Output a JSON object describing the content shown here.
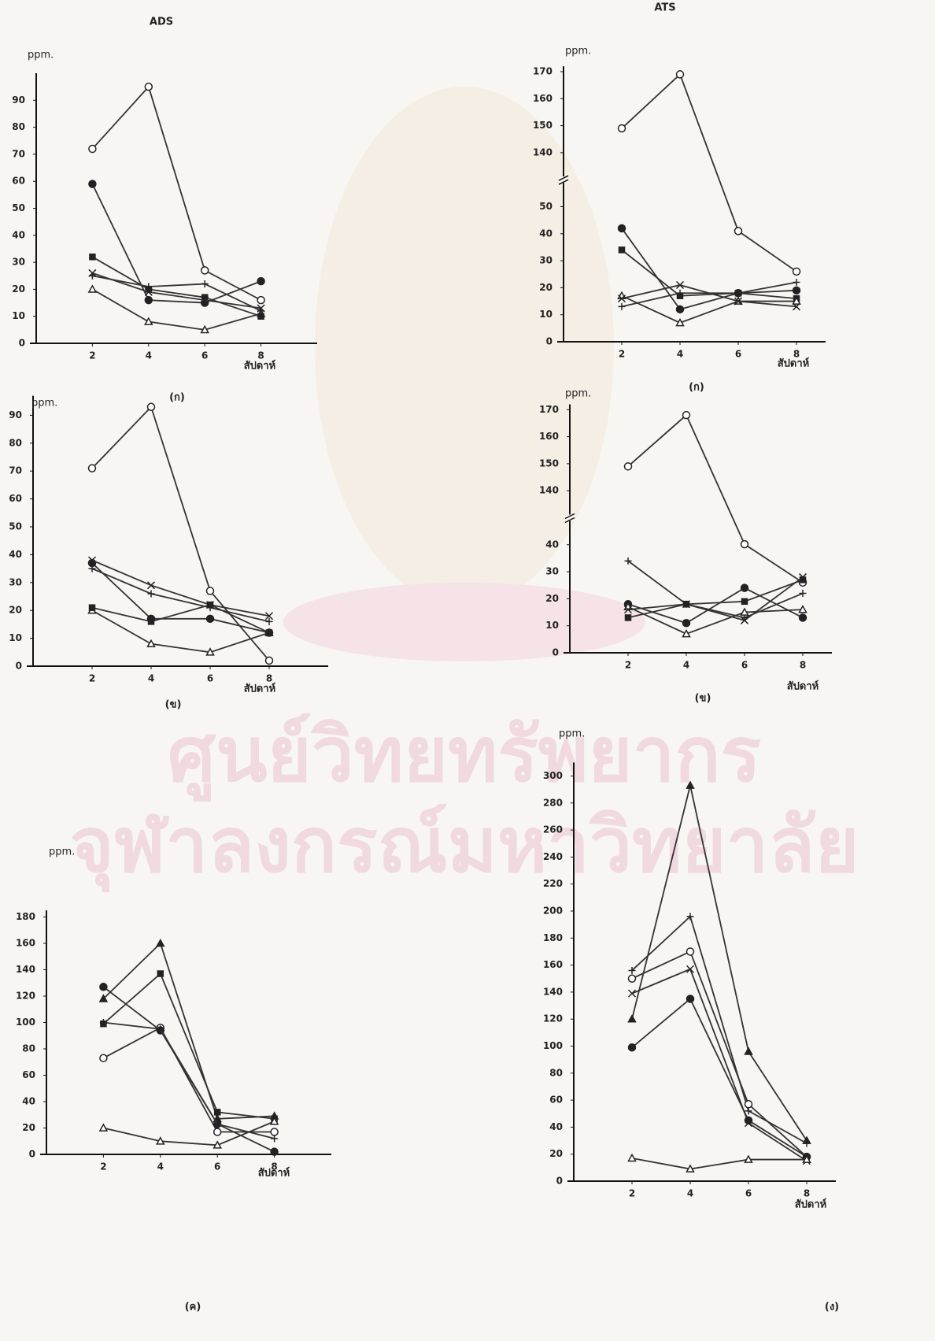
{
  "chart_data": [
    {
      "type": "line",
      "title": "ADS",
      "y_label": "ppm.",
      "x_label": "สัปดาห์",
      "caption": "(ก)",
      "x": [
        2,
        4,
        6,
        8
      ],
      "xlim": [
        0,
        10
      ],
      "xticks": [
        2,
        4,
        6,
        8
      ],
      "ylim": [
        0,
        100
      ],
      "yticks": [
        0,
        10,
        20,
        30,
        40,
        50,
        60,
        70,
        80,
        90
      ],
      "series": [
        {
          "marker": "circle-open",
          "color": "#333",
          "values": [
            72,
            95,
            27,
            16
          ]
        },
        {
          "marker": "circle-filled",
          "color": "#333",
          "values": [
            59,
            16,
            15,
            23
          ]
        },
        {
          "marker": "triangle-open",
          "color": "#333",
          "values": [
            20,
            8,
            5,
            11
          ]
        },
        {
          "marker": "square-filled",
          "color": "#333",
          "values": [
            32,
            20,
            17,
            10
          ]
        },
        {
          "marker": "plus",
          "color": "#333",
          "values": [
            25,
            21,
            22,
            12
          ]
        },
        {
          "marker": "cross",
          "color": "#333",
          "values": [
            26,
            19,
            16,
            13
          ]
        }
      ]
    },
    {
      "type": "line",
      "title": "ATS",
      "y_label": "ppm.",
      "x_label": "สัปดาห์",
      "caption": "(ก)",
      "x": [
        2,
        4,
        6,
        8
      ],
      "xlim": [
        0,
        9
      ],
      "xticks": [
        2,
        4,
        6,
        8
      ],
      "ylim": [
        0,
        172
      ],
      "yticks": [
        0,
        10,
        20,
        30,
        40,
        50,
        140,
        150,
        160,
        170
      ],
      "y_break": [
        50,
        140
      ],
      "series": [
        {
          "marker": "circle-open",
          "color": "#333",
          "values": [
            149,
            169,
            41,
            26
          ]
        },
        {
          "marker": "circle-filled",
          "color": "#333",
          "values": [
            42,
            12,
            18,
            19
          ]
        },
        {
          "marker": "square-filled",
          "color": "#333",
          "values": [
            34,
            17,
            18,
            16
          ]
        },
        {
          "marker": "triangle-open",
          "color": "#333",
          "values": [
            17,
            7,
            15,
            15
          ]
        },
        {
          "marker": "plus",
          "color": "#333",
          "values": [
            13,
            18,
            18,
            22
          ]
        },
        {
          "marker": "cross",
          "color": "#333",
          "values": [
            16,
            21,
            15,
            13
          ]
        }
      ]
    },
    {
      "type": "line",
      "y_label": "ppm.",
      "x_label": "สัปดาห์",
      "caption": "(ข)",
      "x": [
        2,
        4,
        6,
        8
      ],
      "xlim": [
        0,
        10
      ],
      "xticks": [
        2,
        4,
        6,
        8
      ],
      "ylim": [
        0,
        97
      ],
      "yticks": [
        0,
        10,
        20,
        30,
        40,
        50,
        60,
        70,
        80,
        90
      ],
      "series": [
        {
          "marker": "circle-open",
          "color": "#333",
          "values": [
            71,
            93,
            27,
            2
          ]
        },
        {
          "marker": "circle-filled",
          "color": "#333",
          "values": [
            37,
            17,
            17,
            12
          ]
        },
        {
          "marker": "plus",
          "color": "#333",
          "values": [
            35,
            26,
            21,
            16
          ]
        },
        {
          "marker": "cross",
          "color": "#333",
          "values": [
            38,
            29,
            22,
            18
          ]
        },
        {
          "marker": "triangle-open",
          "color": "#333",
          "values": [
            20,
            8,
            5,
            12
          ]
        },
        {
          "marker": "square-filled",
          "color": "#333",
          "values": [
            21,
            16,
            22,
            12
          ]
        }
      ]
    },
    {
      "type": "line",
      "y_label": "ppm.",
      "x_label": "สัปดาห์",
      "caption": "(ข)",
      "x": [
        2,
        4,
        6,
        8
      ],
      "xlim": [
        0,
        9
      ],
      "xticks": [
        2,
        4,
        6,
        8
      ],
      "ylim": [
        0,
        172
      ],
      "yticks": [
        0,
        10,
        20,
        30,
        40,
        140,
        150,
        160,
        170
      ],
      "y_break": [
        40,
        140
      ],
      "series": [
        {
          "marker": "circle-open",
          "color": "#333",
          "values": [
            149,
            168,
            41,
            26
          ]
        },
        {
          "marker": "plus",
          "color": "#333",
          "values": [
            34,
            18,
            13,
            22
          ]
        },
        {
          "marker": "circle-filled",
          "color": "#333",
          "values": [
            18,
            11,
            24,
            13
          ]
        },
        {
          "marker": "triangle-open",
          "color": "#333",
          "values": [
            17,
            7,
            15,
            16
          ]
        },
        {
          "marker": "cross",
          "color": "#333",
          "values": [
            16,
            18,
            12,
            28
          ]
        },
        {
          "marker": "square-filled",
          "color": "#333",
          "values": [
            13,
            18,
            19,
            27
          ]
        }
      ]
    },
    {
      "type": "line",
      "y_label": "ppm.",
      "x_label": "สัปดาห์",
      "caption": "(ค)",
      "x": [
        2,
        4,
        6,
        8
      ],
      "xlim": [
        0,
        10
      ],
      "xticks": [
        2,
        4,
        6,
        8
      ],
      "ylim": [
        0,
        185
      ],
      "yticks": [
        0,
        20,
        40,
        60,
        80,
        100,
        120,
        140,
        160,
        180
      ],
      "series": [
        {
          "marker": "triangle-filled",
          "color": "#333",
          "values": [
            118,
            160,
            27,
            29
          ]
        },
        {
          "marker": "square-filled",
          "color": "#333",
          "values": [
            99,
            137,
            32,
            27
          ]
        },
        {
          "marker": "circle-open",
          "color": "#333",
          "values": [
            73,
            96,
            17,
            17
          ]
        },
        {
          "marker": "circle-filled",
          "color": "#333",
          "values": [
            127,
            94,
            23,
            2
          ]
        },
        {
          "marker": "plus",
          "color": "#333",
          "values": [
            100,
            95,
            23,
            12
          ]
        },
        {
          "marker": "triangle-open",
          "color": "#333",
          "values": [
            20,
            10,
            7,
            25
          ]
        }
      ]
    },
    {
      "type": "line",
      "y_label": "ppm.",
      "x_label": "สัปดาห์",
      "caption": "(ง)",
      "x": [
        2,
        4,
        6,
        8
      ],
      "xlim": [
        0,
        9
      ],
      "xticks": [
        2,
        4,
        6,
        8
      ],
      "ylim": [
        0,
        310
      ],
      "yticks": [
        0,
        20,
        40,
        60,
        80,
        100,
        120,
        140,
        160,
        180,
        200,
        220,
        240,
        260,
        280,
        300
      ],
      "series": [
        {
          "marker": "triangle-filled",
          "color": "#333",
          "values": [
            120,
            293,
            96,
            30
          ]
        },
        {
          "marker": "plus",
          "color": "#333",
          "values": [
            156,
            196,
            52,
            28
          ]
        },
        {
          "marker": "circle-open",
          "color": "#333",
          "values": [
            150,
            170,
            57,
            18
          ]
        },
        {
          "marker": "cross",
          "color": "#333",
          "values": [
            139,
            157,
            43,
            15
          ]
        },
        {
          "marker": "circle-filled",
          "color": "#333",
          "values": [
            99,
            135,
            45,
            18
          ]
        },
        {
          "marker": "triangle-open",
          "color": "#333",
          "values": [
            17,
            9,
            16,
            16
          ]
        }
      ]
    }
  ],
  "watermark": {
    "line1": "ศูนย์วิทยทรัพยากร",
    "line2": "จุฬาลงกรณ์มหาวิทยาลัย"
  }
}
